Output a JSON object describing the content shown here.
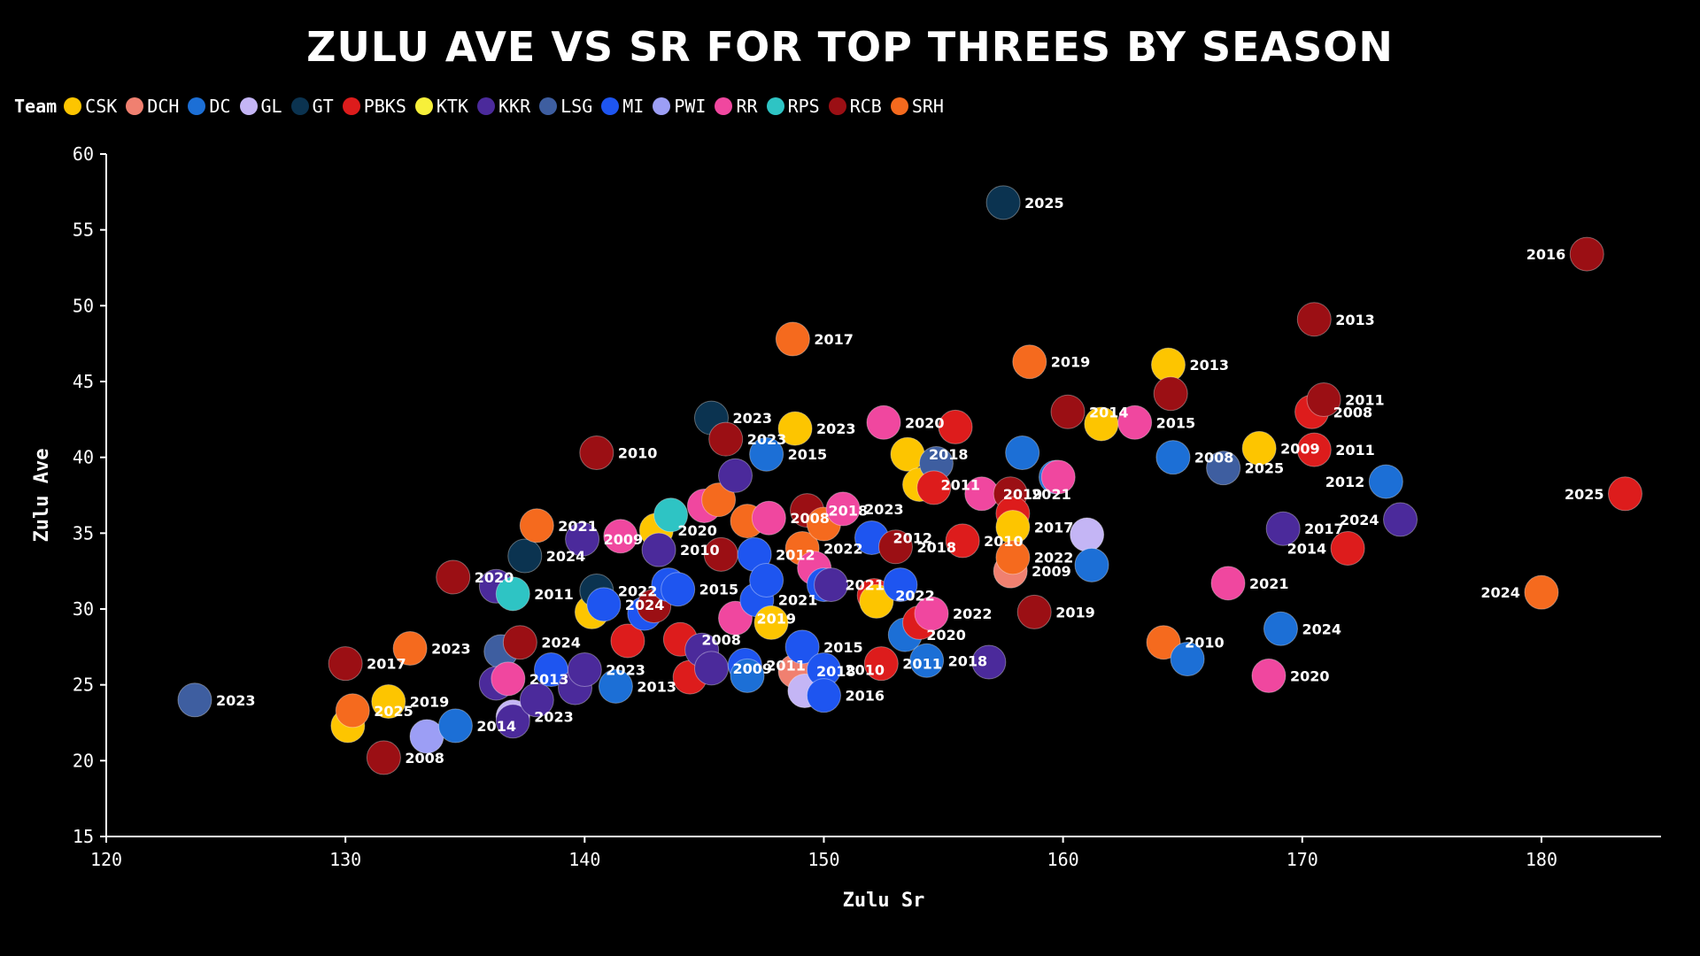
{
  "chart_data": {
    "type": "scatter",
    "title": "ZULU AVE VS SR FOR TOP THREES BY SEASON",
    "xlabel": "Zulu Sr",
    "ylabel": "Zulu Ave",
    "xlim": [
      120,
      185
    ],
    "ylim": [
      15,
      60
    ],
    "x_ticks": [
      "120",
      "130",
      "140",
      "150",
      "160",
      "170",
      "180"
    ],
    "y_ticks": [
      "15",
      "20",
      "25",
      "30",
      "35",
      "40",
      "45",
      "50",
      "55",
      "60"
    ],
    "grid": false,
    "legend_title": "Team",
    "legend_position": "top-left",
    "teams": [
      {
        "name": "CSK",
        "color": "#FDC500"
      },
      {
        "name": "DCH",
        "color": "#F08070"
      },
      {
        "name": "DC",
        "color": "#1C6FD6"
      },
      {
        "name": "GL",
        "color": "#C4B5F5"
      },
      {
        "name": "GT",
        "color": "#0B3350"
      },
      {
        "name": "PBKS",
        "color": "#DD1C1C"
      },
      {
        "name": "KTK",
        "color": "#F7F03A"
      },
      {
        "name": "KKR",
        "color": "#4B2A9B"
      },
      {
        "name": "LSG",
        "color": "#3E5EA0"
      },
      {
        "name": "MI",
        "color": "#1E55F0"
      },
      {
        "name": "PWI",
        "color": "#9C9EF5"
      },
      {
        "name": "RR",
        "color": "#F0479F"
      },
      {
        "name": "RPS",
        "color": "#2EC4C4"
      },
      {
        "name": "RCB",
        "color": "#9B0F14"
      },
      {
        "name": "SRH",
        "color": "#F56A1E"
      }
    ],
    "points": [
      {
        "team": "LSG",
        "x": 123.7,
        "y": 24.0,
        "label": "2023"
      },
      {
        "team": "CSK",
        "x": 130.1,
        "y": 22.3,
        "label": ""
      },
      {
        "team": "SRH",
        "x": 130.3,
        "y": 23.3,
        "label": "2025"
      },
      {
        "team": "RCB",
        "x": 130.0,
        "y": 26.4,
        "label": "2017"
      },
      {
        "team": "RCB",
        "x": 131.6,
        "y": 20.2,
        "label": "2008"
      },
      {
        "team": "CSK",
        "x": 131.8,
        "y": 23.9,
        "label": "2019"
      },
      {
        "team": "SRH",
        "x": 132.7,
        "y": 27.4,
        "label": "2023"
      },
      {
        "team": "PWI",
        "x": 133.4,
        "y": 21.6,
        "label": ""
      },
      {
        "team": "DC",
        "x": 134.6,
        "y": 22.3,
        "label": "2014"
      },
      {
        "team": "RCB",
        "x": 134.5,
        "y": 32.1,
        "label": "2020"
      },
      {
        "team": "KKR",
        "x": 136.3,
        "y": 31.5,
        "label": ""
      },
      {
        "team": "LSG",
        "x": 136.5,
        "y": 27.2,
        "label": ""
      },
      {
        "team": "KKR",
        "x": 136.3,
        "y": 25.1,
        "label": ""
      },
      {
        "team": "RR",
        "x": 136.8,
        "y": 25.4,
        "label": "2013"
      },
      {
        "team": "GL",
        "x": 137.0,
        "y": 22.9,
        "label": "2023"
      },
      {
        "team": "KKR",
        "x": 137.0,
        "y": 22.6,
        "label": ""
      },
      {
        "team": "RPS",
        "x": 137.0,
        "y": 31.0,
        "label": "2011"
      },
      {
        "team": "RCB",
        "x": 137.3,
        "y": 27.8,
        "label": "2024"
      },
      {
        "team": "GT",
        "x": 137.5,
        "y": 33.5,
        "label": "2024"
      },
      {
        "team": "SRH",
        "x": 138.0,
        "y": 35.5,
        "label": "2021"
      },
      {
        "team": "KKR",
        "x": 138.0,
        "y": 24.0,
        "label": ""
      },
      {
        "team": "MI",
        "x": 138.6,
        "y": 26.0,
        "label": ""
      },
      {
        "team": "KKR",
        "x": 139.6,
        "y": 24.8,
        "label": ""
      },
      {
        "team": "KKR",
        "x": 139.9,
        "y": 34.6,
        "label": "2009"
      },
      {
        "team": "KKR",
        "x": 140.0,
        "y": 26.0,
        "label": "2023"
      },
      {
        "team": "CSK",
        "x": 140.3,
        "y": 29.8,
        "label": ""
      },
      {
        "team": "RCB",
        "x": 140.5,
        "y": 40.3,
        "label": "2010"
      },
      {
        "team": "GT",
        "x": 140.5,
        "y": 31.2,
        "label": "2022"
      },
      {
        "team": "MI",
        "x": 140.8,
        "y": 30.3,
        "label": "2024"
      },
      {
        "team": "RR",
        "x": 141.5,
        "y": 34.8,
        "label": ""
      },
      {
        "team": "PBKS",
        "x": 141.8,
        "y": 27.9,
        "label": ""
      },
      {
        "team": "DC",
        "x": 141.3,
        "y": 24.9,
        "label": "2013"
      },
      {
        "team": "MI",
        "x": 142.5,
        "y": 29.7,
        "label": ""
      },
      {
        "team": "RCB",
        "x": 142.9,
        "y": 30.2,
        "label": ""
      },
      {
        "team": "CSK",
        "x": 143.0,
        "y": 35.2,
        "label": "2020"
      },
      {
        "team": "KKR",
        "x": 143.1,
        "y": 33.9,
        "label": "2010"
      },
      {
        "team": "MI",
        "x": 143.5,
        "y": 31.6,
        "label": ""
      },
      {
        "team": "MI",
        "x": 143.9,
        "y": 31.3,
        "label": "2015"
      },
      {
        "team": "RPS",
        "x": 143.6,
        "y": 36.2,
        "label": ""
      },
      {
        "team": "PBKS",
        "x": 144.0,
        "y": 28.0,
        "label": "2008"
      },
      {
        "team": "PBKS",
        "x": 144.4,
        "y": 25.5,
        "label": ""
      },
      {
        "team": "KKR",
        "x": 144.9,
        "y": 27.3,
        "label": ""
      },
      {
        "team": "RR",
        "x": 145.0,
        "y": 36.8,
        "label": ""
      },
      {
        "team": "KKR",
        "x": 145.3,
        "y": 26.1,
        "label": "2009"
      },
      {
        "team": "GT",
        "x": 145.3,
        "y": 42.6,
        "label": "2023"
      },
      {
        "team": "RCB",
        "x": 145.7,
        "y": 33.6,
        "label": ""
      },
      {
        "team": "RCB",
        "x": 145.9,
        "y": 41.2,
        "label": "2023"
      },
      {
        "team": "SRH",
        "x": 145.6,
        "y": 37.2,
        "label": ""
      },
      {
        "team": "KKR",
        "x": 146.3,
        "y": 38.8,
        "label": ""
      },
      {
        "team": "RR",
        "x": 146.3,
        "y": 29.4,
        "label": "2019"
      },
      {
        "team": "MI",
        "x": 146.7,
        "y": 26.3,
        "label": "2011"
      },
      {
        "team": "DC",
        "x": 146.8,
        "y": 25.6,
        "label": ""
      },
      {
        "team": "SRH",
        "x": 146.8,
        "y": 35.8,
        "label": ""
      },
      {
        "team": "MI",
        "x": 147.1,
        "y": 33.6,
        "label": "2012"
      },
      {
        "team": "MI",
        "x": 147.2,
        "y": 30.6,
        "label": "2021"
      },
      {
        "team": "MI",
        "x": 147.6,
        "y": 31.9,
        "label": ""
      },
      {
        "team": "CSK",
        "x": 147.8,
        "y": 29.1,
        "label": ""
      },
      {
        "team": "RR",
        "x": 147.7,
        "y": 36.0,
        "label": "2008"
      },
      {
        "team": "DC",
        "x": 147.6,
        "y": 40.2,
        "label": "2015"
      },
      {
        "team": "CSK",
        "x": 148.8,
        "y": 41.9,
        "label": "2023"
      },
      {
        "team": "SRH",
        "x": 148.7,
        "y": 47.8,
        "label": "2017"
      },
      {
        "team": "DCH",
        "x": 148.8,
        "y": 25.9,
        "label": "2018"
      },
      {
        "team": "MI",
        "x": 149.1,
        "y": 27.5,
        "label": "2015"
      },
      {
        "team": "GL",
        "x": 149.2,
        "y": 24.6,
        "label": ""
      },
      {
        "team": "SRH",
        "x": 149.1,
        "y": 34.0,
        "label": "2022"
      },
      {
        "team": "RCB",
        "x": 149.3,
        "y": 36.5,
        "label": "2018"
      },
      {
        "team": "RR",
        "x": 149.6,
        "y": 32.7,
        "label": ""
      },
      {
        "team": "MI",
        "x": 150.0,
        "y": 26.0,
        "label": "2010"
      },
      {
        "team": "MI",
        "x": 150.0,
        "y": 24.3,
        "label": "2016"
      },
      {
        "team": "MI",
        "x": 150.0,
        "y": 31.6,
        "label": "2021"
      },
      {
        "team": "SRH",
        "x": 150.0,
        "y": 35.6,
        "label": ""
      },
      {
        "team": "KKR",
        "x": 150.3,
        "y": 31.6,
        "label": ""
      },
      {
        "team": "RR",
        "x": 150.8,
        "y": 36.6,
        "label": "2023"
      },
      {
        "team": "PBKS",
        "x": 152.1,
        "y": 30.9,
        "label": "2022"
      },
      {
        "team": "CSK",
        "x": 152.2,
        "y": 30.5,
        "label": ""
      },
      {
        "team": "MI",
        "x": 152.0,
        "y": 34.7,
        "label": "2012"
      },
      {
        "team": "PBKS",
        "x": 152.4,
        "y": 26.4,
        "label": "2011"
      },
      {
        "team": "RR",
        "x": 152.5,
        "y": 42.3,
        "label": "2020"
      },
      {
        "team": "RCB",
        "x": 153.0,
        "y": 34.1,
        "label": "2018"
      },
      {
        "team": "MI",
        "x": 153.2,
        "y": 31.6,
        "label": ""
      },
      {
        "team": "DC",
        "x": 153.4,
        "y": 28.3,
        "label": "2020"
      },
      {
        "team": "CSK",
        "x": 153.5,
        "y": 40.2,
        "label": "2018"
      },
      {
        "team": "CSK",
        "x": 154.0,
        "y": 38.2,
        "label": "2011"
      },
      {
        "team": "PBKS",
        "x": 154.0,
        "y": 29.1,
        "label": ""
      },
      {
        "team": "RR",
        "x": 154.5,
        "y": 29.7,
        "label": "2022"
      },
      {
        "team": "DC",
        "x": 154.3,
        "y": 26.6,
        "label": "2018"
      },
      {
        "team": "LSG",
        "x": 154.7,
        "y": 39.6,
        "label": ""
      },
      {
        "team": "PBKS",
        "x": 154.6,
        "y": 38.0,
        "label": ""
      },
      {
        "team": "PBKS",
        "x": 155.5,
        "y": 42.0,
        "label": ""
      },
      {
        "team": "PBKS",
        "x": 155.8,
        "y": 34.5,
        "label": "2010"
      },
      {
        "team": "RR",
        "x": 156.6,
        "y": 37.6,
        "label": "2019"
      },
      {
        "team": "KKR",
        "x": 156.9,
        "y": 26.5,
        "label": ""
      },
      {
        "team": "GT",
        "x": 157.5,
        "y": 56.8,
        "label": "2025"
      },
      {
        "team": "RCB",
        "x": 157.8,
        "y": 37.6,
        "label": "2021"
      },
      {
        "team": "PBKS",
        "x": 157.9,
        "y": 36.3,
        "label": ""
      },
      {
        "team": "DCH",
        "x": 157.8,
        "y": 32.5,
        "label": "2009"
      },
      {
        "team": "CSK",
        "x": 157.9,
        "y": 35.4,
        "label": "2017"
      },
      {
        "team": "SRH",
        "x": 157.9,
        "y": 33.4,
        "label": "2022"
      },
      {
        "team": "DC",
        "x": 158.3,
        "y": 40.3,
        "label": ""
      },
      {
        "team": "RCB",
        "x": 158.8,
        "y": 29.8,
        "label": "2019"
      },
      {
        "team": "SRH",
        "x": 158.6,
        "y": 46.3,
        "label": "2019"
      },
      {
        "team": "DC",
        "x": 159.7,
        "y": 38.7,
        "label": ""
      },
      {
        "team": "RR",
        "x": 159.8,
        "y": 38.7,
        "label": ""
      },
      {
        "team": "RCB",
        "x": 160.2,
        "y": 43.0,
        "label": "2014"
      },
      {
        "team": "GL",
        "x": 161.0,
        "y": 34.9,
        "label": ""
      },
      {
        "team": "DC",
        "x": 161.2,
        "y": 32.9,
        "label": ""
      },
      {
        "team": "CSK",
        "x": 161.6,
        "y": 42.2,
        "label": ""
      },
      {
        "team": "RR",
        "x": 163.0,
        "y": 42.3,
        "label": "2015"
      },
      {
        "team": "SRH",
        "x": 164.2,
        "y": 27.8,
        "label": "2010"
      },
      {
        "team": "CSK",
        "x": 164.4,
        "y": 46.1,
        "label": "2013"
      },
      {
        "team": "RCB",
        "x": 164.5,
        "y": 44.2,
        "label": ""
      },
      {
        "team": "DC",
        "x": 164.6,
        "y": 40.0,
        "label": "2008"
      },
      {
        "team": "DC",
        "x": 165.2,
        "y": 26.7,
        "label": ""
      },
      {
        "team": "LSG",
        "x": 166.7,
        "y": 39.3,
        "label": "2025"
      },
      {
        "team": "RR",
        "x": 166.9,
        "y": 31.7,
        "label": "2021"
      },
      {
        "team": "CSK",
        "x": 168.2,
        "y": 40.6,
        "label": "2009"
      },
      {
        "team": "RR",
        "x": 168.6,
        "y": 25.6,
        "label": "2020"
      },
      {
        "team": "DC",
        "x": 169.1,
        "y": 28.7,
        "label": "2024"
      },
      {
        "team": "KKR",
        "x": 169.2,
        "y": 35.3,
        "label": "2017"
      },
      {
        "team": "PBKS",
        "x": 170.4,
        "y": 43.0,
        "label": "2008"
      },
      {
        "team": "PBKS",
        "x": 170.5,
        "y": 40.5,
        "label": "2011"
      },
      {
        "team": "RCB",
        "x": 170.5,
        "y": 49.1,
        "label": "2013"
      },
      {
        "team": "RCB",
        "x": 170.9,
        "y": 43.8,
        "label": "2011"
      },
      {
        "team": "PBKS",
        "x": 171.9,
        "y": 34.0,
        "label": "2014"
      },
      {
        "team": "DC",
        "x": 173.5,
        "y": 38.4,
        "label": "2012"
      },
      {
        "team": "KKR",
        "x": 174.1,
        "y": 35.9,
        "label": "2024"
      },
      {
        "team": "SRH",
        "x": 180.0,
        "y": 31.1,
        "label": "2024"
      },
      {
        "team": "RCB",
        "x": 181.9,
        "y": 53.4,
        "label": "2016"
      },
      {
        "team": "PBKS",
        "x": 183.5,
        "y": 37.6,
        "label": "2025"
      }
    ]
  }
}
